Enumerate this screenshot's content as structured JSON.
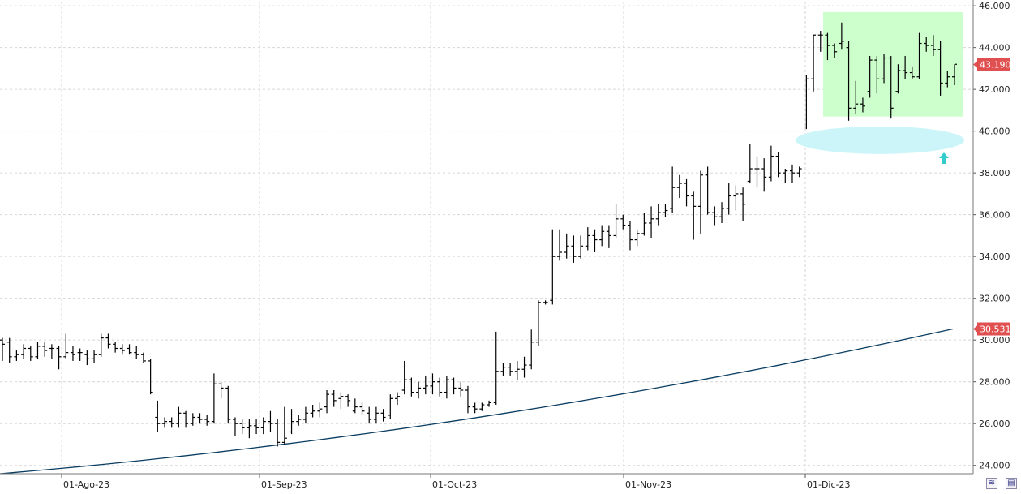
{
  "chart_data": {
    "type": "ohlc",
    "title": "",
    "xlabel": "",
    "ylabel": "",
    "ylim": [
      23.6,
      46.2
    ],
    "y_ticks": [
      "24.000",
      "26.000",
      "28.000",
      "30.000",
      "32.000",
      "34.000",
      "36.000",
      "38.000",
      "40.000",
      "42.000",
      "44.000",
      "46.000"
    ],
    "x_ticks": [
      "01-Ago-23",
      "01-Sep-23",
      "01-Oct-23",
      "01-Nov-23",
      "01-Dic-23"
    ],
    "grid": true,
    "series": [
      {
        "kind": "ohlc",
        "color": "#000000",
        "bars": [
          [
            30.0,
            30.1,
            29.0,
            29.8
          ],
          [
            29.9,
            30.1,
            28.9,
            29.2
          ],
          [
            29.2,
            29.5,
            29.0,
            29.3
          ],
          [
            29.3,
            29.8,
            29.1,
            29.6
          ],
          [
            29.6,
            29.7,
            29.0,
            29.2
          ],
          [
            29.2,
            29.9,
            29.1,
            29.7
          ],
          [
            29.7,
            29.9,
            29.2,
            29.5
          ],
          [
            29.6,
            29.8,
            29.1,
            29.6
          ],
          [
            29.6,
            29.7,
            28.6,
            29.2
          ],
          [
            29.2,
            30.3,
            29.1,
            29.4
          ],
          [
            29.4,
            29.7,
            29.0,
            29.3
          ],
          [
            29.4,
            29.6,
            29.0,
            29.4
          ],
          [
            29.3,
            29.5,
            28.8,
            29.1
          ],
          [
            29.1,
            29.5,
            28.9,
            29.3
          ],
          [
            29.3,
            30.3,
            29.2,
            30.1
          ],
          [
            30.1,
            30.3,
            29.6,
            29.8
          ],
          [
            29.8,
            29.9,
            29.4,
            29.6
          ],
          [
            29.6,
            29.8,
            29.3,
            29.5
          ],
          [
            29.6,
            29.8,
            29.3,
            29.4
          ],
          [
            29.4,
            29.7,
            29.1,
            29.3
          ],
          [
            29.3,
            29.4,
            28.9,
            29.0
          ],
          [
            29.0,
            29.1,
            27.4,
            27.5
          ],
          [
            26.3,
            27.1,
            25.6,
            26.0
          ],
          [
            26.0,
            26.3,
            25.8,
            26.1
          ],
          [
            26.1,
            26.3,
            25.8,
            26.0
          ],
          [
            26.0,
            26.8,
            25.8,
            26.5
          ],
          [
            26.5,
            26.6,
            25.8,
            26.0
          ],
          [
            26.0,
            26.5,
            25.9,
            26.3
          ],
          [
            26.3,
            26.5,
            26.0,
            26.2
          ],
          [
            26.2,
            26.4,
            25.9,
            26.1
          ],
          [
            26.1,
            28.4,
            26.0,
            27.9
          ],
          [
            27.9,
            28.0,
            27.2,
            27.7
          ],
          [
            27.7,
            27.8,
            26.0,
            26.2
          ],
          [
            26.2,
            26.3,
            25.4,
            26.0
          ],
          [
            26.0,
            26.2,
            25.5,
            25.8
          ],
          [
            25.8,
            26.2,
            25.3,
            25.9
          ],
          [
            25.9,
            26.2,
            25.5,
            25.8
          ],
          [
            25.8,
            26.3,
            25.5,
            26.1
          ],
          [
            26.1,
            26.6,
            25.6,
            26.0
          ],
          [
            26.0,
            26.2,
            24.9,
            25.1
          ],
          [
            25.1,
            26.8,
            25.0,
            25.3
          ],
          [
            25.6,
            26.7,
            25.5,
            26.1
          ],
          [
            26.1,
            26.4,
            25.9,
            26.2
          ],
          [
            26.2,
            26.8,
            26.0,
            26.5
          ],
          [
            26.5,
            26.9,
            26.3,
            26.6
          ],
          [
            26.6,
            27.0,
            26.3,
            26.7
          ],
          [
            26.8,
            27.6,
            26.5,
            27.4
          ],
          [
            27.4,
            27.6,
            26.8,
            27.1
          ],
          [
            27.2,
            27.5,
            26.7,
            27.3
          ],
          [
            27.3,
            27.4,
            26.8,
            27.1
          ],
          [
            26.6,
            27.2,
            26.5,
            26.8
          ],
          [
            26.8,
            27.0,
            26.4,
            26.6
          ],
          [
            26.5,
            26.8,
            26.0,
            26.2
          ],
          [
            26.2,
            26.8,
            26.0,
            26.5
          ],
          [
            26.5,
            26.7,
            26.1,
            26.3
          ],
          [
            26.4,
            27.4,
            26.2,
            27.2
          ],
          [
            27.2,
            27.5,
            26.9,
            27.3
          ],
          [
            27.6,
            29.0,
            27.4,
            28.1
          ],
          [
            28.1,
            28.2,
            27.3,
            27.5
          ],
          [
            27.5,
            28.0,
            27.2,
            27.7
          ],
          [
            27.7,
            28.3,
            27.4,
            27.8
          ],
          [
            27.8,
            28.4,
            27.4,
            28.0
          ],
          [
            28.0,
            28.2,
            27.3,
            27.5
          ],
          [
            27.5,
            28.3,
            27.2,
            28.1
          ],
          [
            28.1,
            28.2,
            27.4,
            27.7
          ],
          [
            27.7,
            28.0,
            27.3,
            27.6
          ],
          [
            27.6,
            27.8,
            26.5,
            26.8
          ],
          [
            26.8,
            27.0,
            26.5,
            26.7
          ],
          [
            26.7,
            27.0,
            26.6,
            26.9
          ],
          [
            26.9,
            27.1,
            26.8,
            27.0
          ],
          [
            27.0,
            30.4,
            26.9,
            28.5
          ],
          [
            28.5,
            28.9,
            28.3,
            28.7
          ],
          [
            28.7,
            28.9,
            28.3,
            28.5
          ],
          [
            28.5,
            29.0,
            28.1,
            28.6
          ],
          [
            28.6,
            29.2,
            28.2,
            28.8
          ],
          [
            28.8,
            30.5,
            28.6,
            29.9
          ],
          [
            29.9,
            31.9,
            29.7,
            31.8
          ],
          [
            31.8,
            31.9,
            31.7,
            31.8
          ],
          [
            31.9,
            35.3,
            31.7,
            34.0
          ],
          [
            34.0,
            35.3,
            33.8,
            34.2
          ],
          [
            34.2,
            35.1,
            33.9,
            34.5
          ],
          [
            34.5,
            35.0,
            33.7,
            34.0
          ],
          [
            34.0,
            35.0,
            33.9,
            34.5
          ],
          [
            34.5,
            35.4,
            34.3,
            35.0
          ],
          [
            35.0,
            35.3,
            34.2,
            34.8
          ],
          [
            34.8,
            35.5,
            34.5,
            35.2
          ],
          [
            35.2,
            35.5,
            34.4,
            35.0
          ],
          [
            35.0,
            36.5,
            34.9,
            35.8
          ],
          [
            35.8,
            36.0,
            35.3,
            35.5
          ],
          [
            35.5,
            35.7,
            34.3,
            34.8
          ],
          [
            34.8,
            35.3,
            34.5,
            35.1
          ],
          [
            35.1,
            36.1,
            35.0,
            35.6
          ],
          [
            35.6,
            36.4,
            34.9,
            35.8
          ],
          [
            35.8,
            36.5,
            35.5,
            36.1
          ],
          [
            36.1,
            36.5,
            35.9,
            36.2
          ],
          [
            36.3,
            38.3,
            36.1,
            37.3
          ],
          [
            37.3,
            37.9,
            36.8,
            37.5
          ],
          [
            37.5,
            37.7,
            36.4,
            36.9
          ],
          [
            36.9,
            37.1,
            34.8,
            36.4
          ],
          [
            36.4,
            38.1,
            35.1,
            37.9
          ],
          [
            37.9,
            38.3,
            36.0,
            36.1
          ],
          [
            36.1,
            36.4,
            35.5,
            35.9
          ],
          [
            35.9,
            36.6,
            35.6,
            36.3
          ],
          [
            36.3,
            37.5,
            36.0,
            36.9
          ],
          [
            36.9,
            37.4,
            36.2,
            37.0
          ],
          [
            37.0,
            37.3,
            35.7,
            36.5
          ],
          [
            37.6,
            39.4,
            37.5,
            38.2
          ],
          [
            38.2,
            38.8,
            37.3,
            38.2
          ],
          [
            38.2,
            38.7,
            37.1,
            37.8
          ],
          [
            37.8,
            39.3,
            37.6,
            38.8
          ],
          [
            38.8,
            39.0,
            37.8,
            38.0
          ],
          [
            38.0,
            38.2,
            37.5,
            38.1
          ],
          [
            38.1,
            38.4,
            37.5,
            38.0
          ],
          [
            38.0,
            38.3,
            37.8,
            38.2
          ],
          [
            40.2,
            42.7,
            40.1,
            42.5
          ],
          [
            42.5,
            44.6,
            41.9,
            44.6
          ],
          [
            44.6,
            44.8,
            43.8,
            44.6
          ],
          [
            44.6,
            44.7,
            43.4,
            44.1
          ],
          [
            44.1,
            44.2,
            43.5,
            43.8
          ],
          [
            44.2,
            45.2,
            43.9,
            44.3
          ],
          [
            44.0,
            44.3,
            40.5,
            41.1
          ],
          [
            41.1,
            42.4,
            40.8,
            41.3
          ],
          [
            41.3,
            41.6,
            40.9,
            41.2
          ],
          [
            41.9,
            43.6,
            41.6,
            43.4
          ],
          [
            43.4,
            43.6,
            41.8,
            42.5
          ],
          [
            42.5,
            43.7,
            42.3,
            43.5
          ],
          [
            43.5,
            43.6,
            40.6,
            41.1
          ],
          [
            41.9,
            43.2,
            41.8,
            42.9
          ],
          [
            42.9,
            43.6,
            42.5,
            42.8
          ],
          [
            42.8,
            43.1,
            42.5,
            42.6
          ],
          [
            42.6,
            44.7,
            42.5,
            44.2
          ],
          [
            44.2,
            44.5,
            43.8,
            44.1
          ],
          [
            44.1,
            44.6,
            43.6,
            43.9
          ],
          [
            43.9,
            44.3,
            41.7,
            42.3
          ],
          [
            42.3,
            42.9,
            42.1,
            42.6
          ],
          [
            42.6,
            43.2,
            42.2,
            43.2
          ]
        ]
      },
      {
        "kind": "line",
        "name": "",
        "color": "#0a3d62",
        "y_start": 23.6,
        "y_end": 30.531
      }
    ],
    "annotations": {
      "last_price_tag": "43.190",
      "ma_tag": "30.531",
      "range_box_color": "#ccffcc",
      "range_box_ylim": [
        40.7,
        45.7
      ],
      "support_ellipse_color": "#ccf5fa",
      "support_level": 39.8,
      "arrow_color": "#33cccc",
      "tag_color": "#e05050"
    }
  }
}
